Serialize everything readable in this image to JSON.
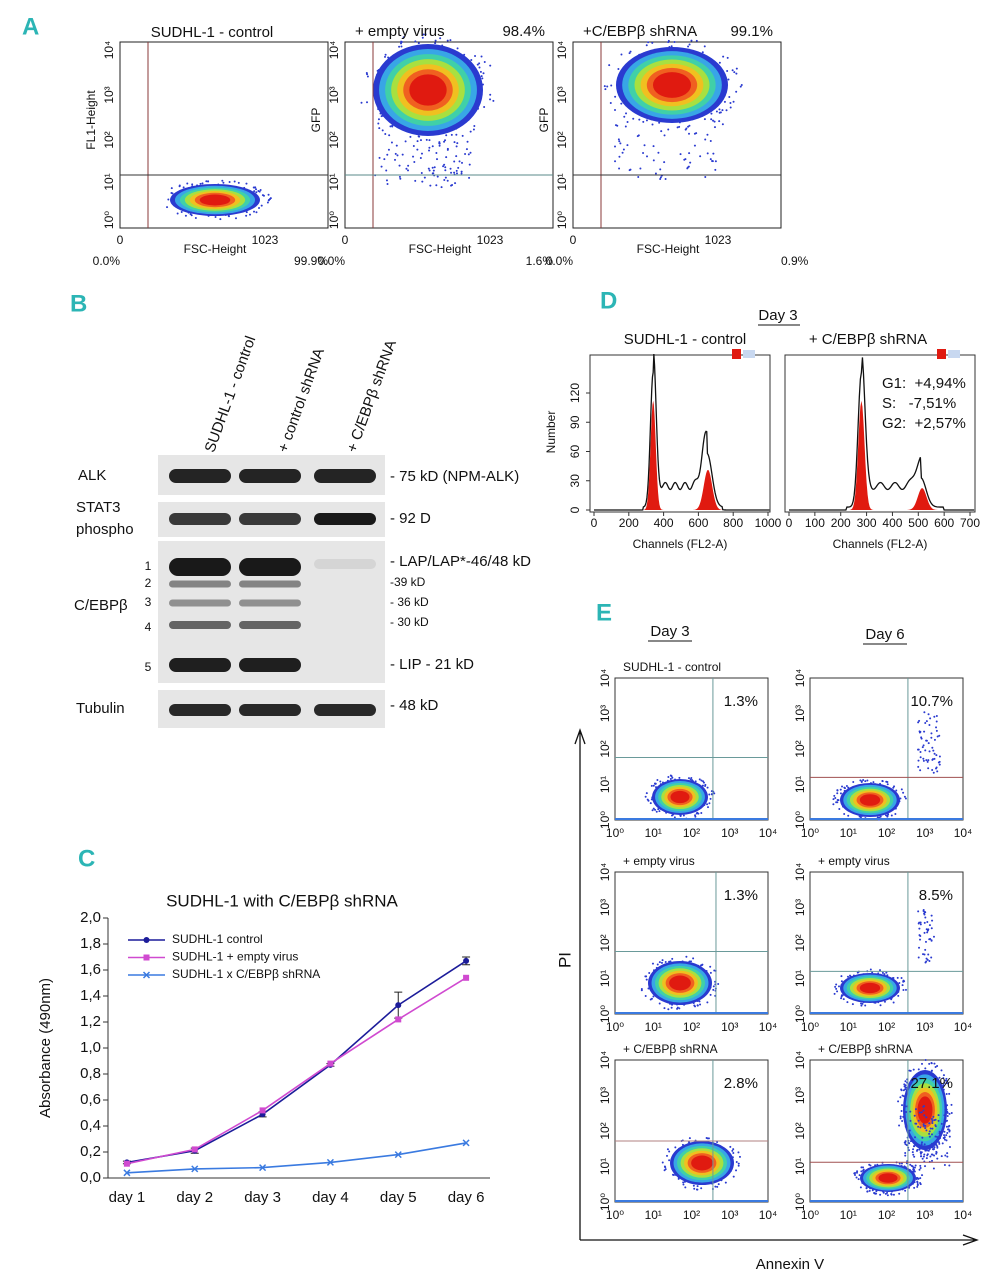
{
  "panels": {
    "A": {
      "letter": "A",
      "yticks": [
        "10⁰",
        "10¹",
        "10²",
        "10³",
        "10⁴"
      ],
      "xticks": [
        0,
        1023
      ],
      "xlabel": "FSC-Height",
      "plots": [
        {
          "title": "SUDHL-1 - control",
          "ylabel": "FL1-Height",
          "left": "0.0%",
          "right": "99.9%"
        },
        {
          "title": "+ empty virus",
          "pct": "98.4%",
          "ylabel": "GFP",
          "left": "0.0%",
          "right": "1.6%"
        },
        {
          "title": "+C/EBPβ shRNA",
          "pct": "99.1%",
          "ylabel": "GFP",
          "left": "0.0%",
          "right": "0.9%"
        }
      ]
    },
    "B": {
      "letter": "B",
      "lanes": [
        "SUDHL-1 - control",
        "+ control shRNA",
        "+ C/EBPβ shRNA"
      ],
      "rows": [
        {
          "label": "ALK"
        },
        {
          "label": "STAT3",
          "label2": "phospho"
        },
        {
          "label": "C/EBPβ",
          "bands": [
            1,
            2,
            3,
            4,
            5
          ]
        },
        {
          "label": "Tubulin"
        }
      ],
      "markers": [
        "- 75 kD (NPM-ALK)",
        "- 92 D",
        "- LAP/LAP*-46/48 kD",
        "-39 kD",
        "- 36 kD",
        "- 30 kD",
        "- LIP - 21 kD",
        "- 48 kD"
      ]
    },
    "C": {
      "letter": "C"
    },
    "D": {
      "letter": "D",
      "day": "Day 3",
      "ylabel": "Number",
      "yticks": [
        0,
        30,
        60,
        90,
        120
      ],
      "xlabel": "Channels (FL2-A)",
      "plots": [
        {
          "title": "SUDHL-1 - control",
          "xticks": [
            0,
            200,
            400,
            600,
            800,
            1000
          ]
        },
        {
          "title": "+ C/EBPβ shRNA",
          "xticks": [
            0,
            100,
            200,
            300,
            400,
            500,
            600,
            700
          ],
          "notes": [
            "G1:  +4,94%",
            "S:   -7,51%",
            "G2:  +2,57%"
          ]
        }
      ]
    },
    "E": {
      "letter": "E",
      "columns": [
        "Day 3",
        "Day 6"
      ],
      "ylabel": "PI",
      "xlabel": "Annexin V",
      "ticks": [
        "10⁰",
        "10¹",
        "10²",
        "10³",
        "10⁴"
      ],
      "plots": [
        {
          "title": "SUDHL-1 - control",
          "pct": "1.3%"
        },
        {
          "pct": "10.7%"
        },
        {
          "title": "+ empty virus",
          "pct": "1.3%"
        },
        {
          "title": "+ empty virus",
          "pct": "8.5%"
        },
        {
          "title": "+ C/EBPβ shRNA",
          "pct": "2.8%"
        },
        {
          "title": "+ C/EBPβ shRNA",
          "pct": "27.1%"
        }
      ]
    }
  },
  "chart_data": {
    "type": "line",
    "title": "SUDHL-1 with C/EBPβ shRNA",
    "ylabel": "Absorbance (490nm)",
    "categories": [
      "day 1",
      "day 2",
      "day 3",
      "day 4",
      "day 5",
      "day 6"
    ],
    "series": [
      {
        "name": "SUDHL-1 control",
        "color": "#1c1c9a",
        "marker": "circle",
        "values": [
          0.12,
          0.21,
          0.49,
          0.87,
          1.33,
          1.67
        ],
        "errors": [
          0.01,
          0.02,
          0.02,
          0.01,
          0.1,
          0.03
        ]
      },
      {
        "name": "SUDHL-1 + empty virus",
        "color": "#d04ad0",
        "marker": "square",
        "values": [
          0.11,
          0.22,
          0.52,
          0.88,
          1.22,
          1.54
        ]
      },
      {
        "name": "SUDHL-1 x C/EBPβ shRNA",
        "color": "#3a7ae0",
        "marker": "x",
        "values": [
          0.04,
          0.07,
          0.08,
          0.12,
          0.18,
          0.27
        ]
      }
    ],
    "ylim": [
      0,
      2.0
    ],
    "yticks": [
      {
        "value": 0,
        "label": "0,0"
      },
      {
        "value": 0.2,
        "label": "0,2"
      },
      {
        "value": 0.4,
        "label": "0,4"
      },
      {
        "value": 0.6,
        "label": "0,6"
      },
      {
        "value": 0.8,
        "label": "0,8"
      },
      {
        "value": 1.0,
        "label": "1,0"
      },
      {
        "value": 1.2,
        "label": "1,2"
      },
      {
        "value": 1.4,
        "label": "1,4"
      },
      {
        "value": 1.6,
        "label": "1,6"
      },
      {
        "value": 1.8,
        "label": "1,8"
      },
      {
        "value": 2.0,
        "label": "2,0"
      }
    ],
    "legend": "upper-left"
  }
}
